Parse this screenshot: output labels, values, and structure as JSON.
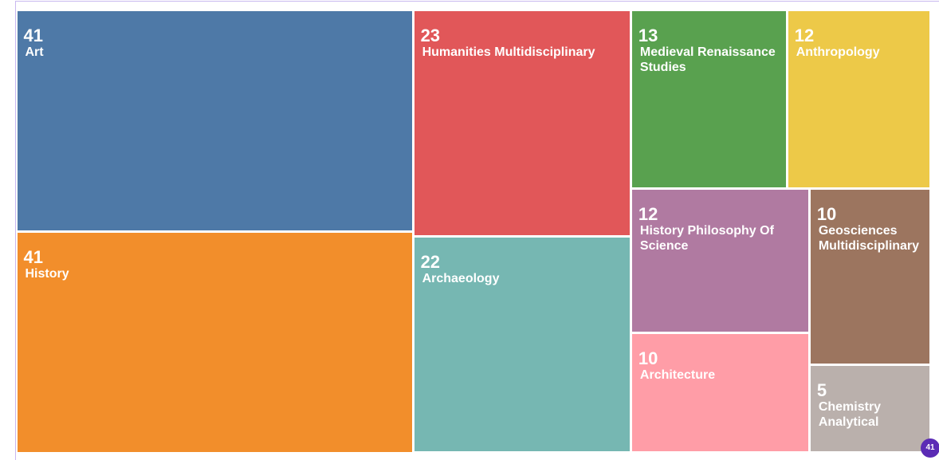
{
  "chart_data": {
    "type": "treemap",
    "categories": [
      "Art",
      "History",
      "Humanities Multidisciplinary",
      "Archaeology",
      "Medieval Renaissance Studies",
      "Anthropology",
      "History Philosophy Of Science",
      "Architecture",
      "Geosciences Multidisciplinary",
      "Chemistry Analytical"
    ],
    "values": [
      41,
      41,
      23,
      22,
      13,
      12,
      12,
      10,
      10,
      5
    ],
    "colors": [
      "#4e79a7",
      "#f28e2b",
      "#e15759",
      "#76b7b2",
      "#59a14f",
      "#edc948",
      "#b07aa1",
      "#ff9da7",
      "#9c755f",
      "#bab0ac"
    ]
  },
  "badge": "41"
}
